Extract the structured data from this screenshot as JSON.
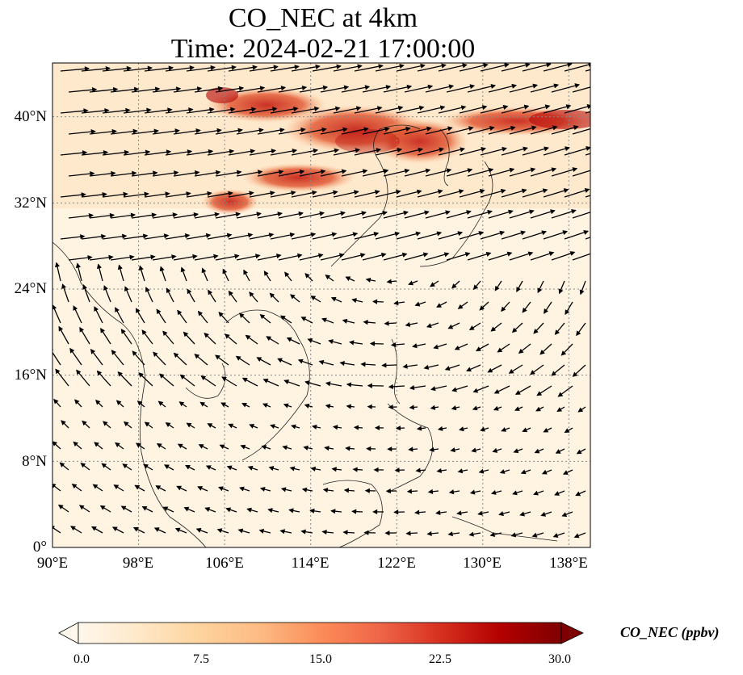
{
  "map": {
    "title_line1": "CO_NEC at 4km",
    "title_line2": "Time: 2024-02-21 17:00:00",
    "x_ticks": [
      "90°E",
      "98°E",
      "106°E",
      "114°E",
      "122°E",
      "130°E",
      "138°E"
    ],
    "y_ticks": [
      "40°N",
      "32°N",
      "24°N",
      "16°N",
      "8°N",
      "0°"
    ],
    "lon_range": [
      90,
      140
    ],
    "lat_range": [
      0,
      45
    ],
    "gridlines": "dotted"
  },
  "colorbar": {
    "label": "CO_NEC (ppbv)",
    "ticks": [
      "0.0",
      "7.5",
      "15.0",
      "22.5",
      "30.0"
    ],
    "range": [
      0,
      30
    ],
    "colormap": "OrRd",
    "colors": [
      "#fff7ec",
      "#fee8c8",
      "#fdd49e",
      "#fdbb84",
      "#fc8d59",
      "#ef6548",
      "#d7301f",
      "#b30000",
      "#7f0000"
    ],
    "extend": "both"
  }
}
